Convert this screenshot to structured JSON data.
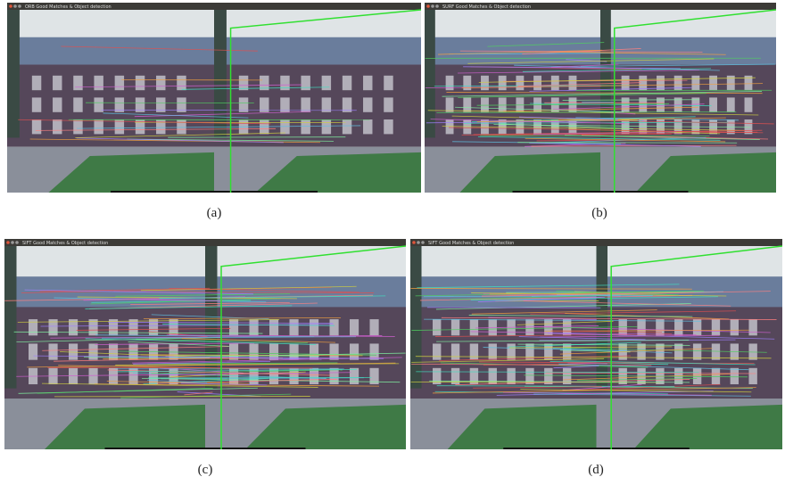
{
  "panels": [
    {
      "window_title": "ORB Good Matches & Object detection",
      "caption": "(a)"
    },
    {
      "window_title": "SURF Good Matches & Object detection",
      "caption": "(b)"
    },
    {
      "window_title": "SIFT Good Matches & Object detection",
      "caption": "(c)"
    },
    {
      "window_title": "SIFT Good Matches & Object detection",
      "caption": "(d)"
    }
  ]
}
